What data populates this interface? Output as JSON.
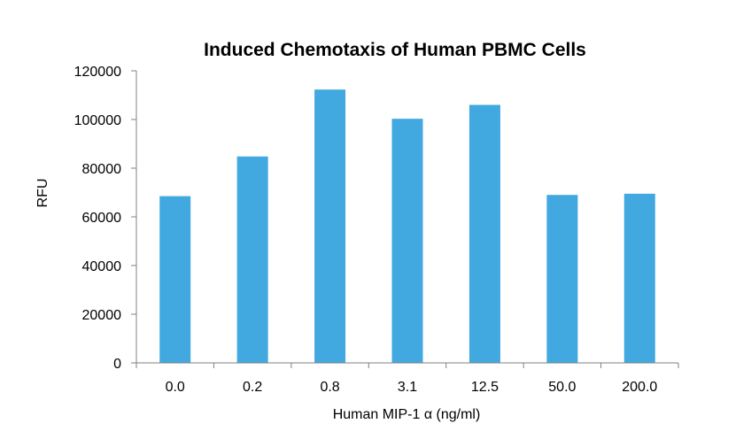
{
  "chart_data": {
    "type": "bar",
    "title": "Induced Chemotaxis of Human PBMC Cells",
    "xlabel": "Human MIP-1 α (ng/ml)",
    "ylabel": "RFU",
    "categories": [
      "0.0",
      "0.2",
      "0.8",
      "3.1",
      "12.5",
      "50.0",
      "200.0"
    ],
    "values": [
      68500,
      84800,
      112300,
      100300,
      106000,
      69000,
      69500
    ],
    "ylim": [
      0,
      120000
    ],
    "yticks": [
      "0",
      "20000",
      "40000",
      "60000",
      "80000",
      "100000",
      "120000"
    ],
    "grid": false,
    "legend": "none",
    "bar_color": "#41a9df"
  }
}
